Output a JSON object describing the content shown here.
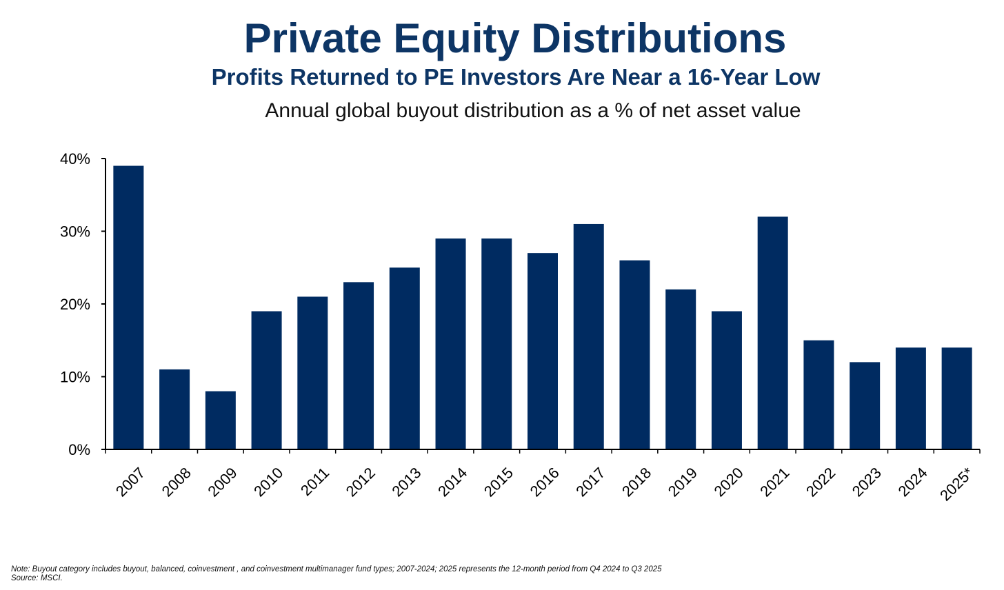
{
  "header": {
    "title": "Private Equity Distributions",
    "subtitle": "Profits Returned to PE Investors Are Near a 16-Year Low",
    "caption": "Annual global buyout distribution as a % of net asset value"
  },
  "colors": {
    "bar": "#002b61",
    "axis": "#000000",
    "title": "#0d3565"
  },
  "chart_data": {
    "type": "bar",
    "title": "Annual global buyout distribution as a % of net asset value",
    "xlabel": "",
    "ylabel": "",
    "categories": [
      "2007",
      "2008",
      "2009",
      "2010",
      "2011",
      "2012",
      "2013",
      "2014",
      "2015",
      "2016",
      "2017",
      "2018",
      "2019",
      "2020",
      "2021",
      "2022",
      "2023",
      "2024",
      "2025*"
    ],
    "values": [
      39,
      11,
      8,
      19,
      21,
      23,
      25,
      29,
      29,
      27,
      31,
      26,
      22,
      19,
      32,
      15,
      12,
      14,
      14
    ],
    "ylim": [
      0,
      40
    ],
    "yticks": [
      0,
      10,
      20,
      30,
      40
    ],
    "ytick_labels": [
      "0%",
      "10%",
      "20%",
      "30%",
      "40%"
    ],
    "grid": false,
    "legend": "none"
  },
  "footer": {
    "note": "Note: Buyout category includes buyout, balanced, coinvestment , and coinvestment multimanager fund types; 2007-2024; 2025 represents the 12-month period from Q4 2024 to Q3 2025",
    "source": "Source: MSCI."
  }
}
